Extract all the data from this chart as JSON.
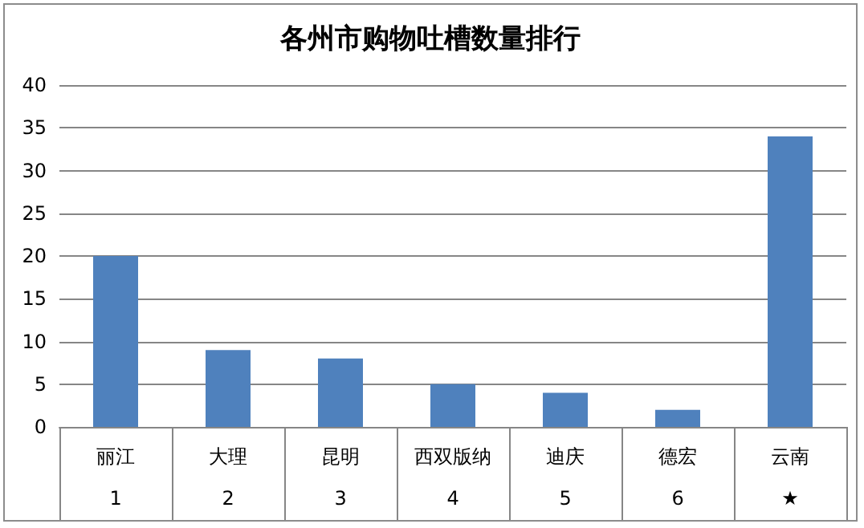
{
  "chart_data": {
    "type": "bar",
    "title": "各州市购物吐槽数量排行",
    "categories": [
      "丽江\n\n1",
      "大理\n\n2",
      "昆明\n\n3",
      "西双版纳\n\n4",
      "迪庆\n\n5",
      "德宏\n\n6",
      "云南\n\n★"
    ],
    "values": [
      20,
      9,
      8,
      5,
      4,
      2,
      34
    ],
    "color": "#4f81bd",
    "ylim": [
      0,
      40
    ],
    "yticks": [
      0,
      5,
      10,
      15,
      20,
      25,
      30,
      35,
      40
    ],
    "grid": "y"
  }
}
